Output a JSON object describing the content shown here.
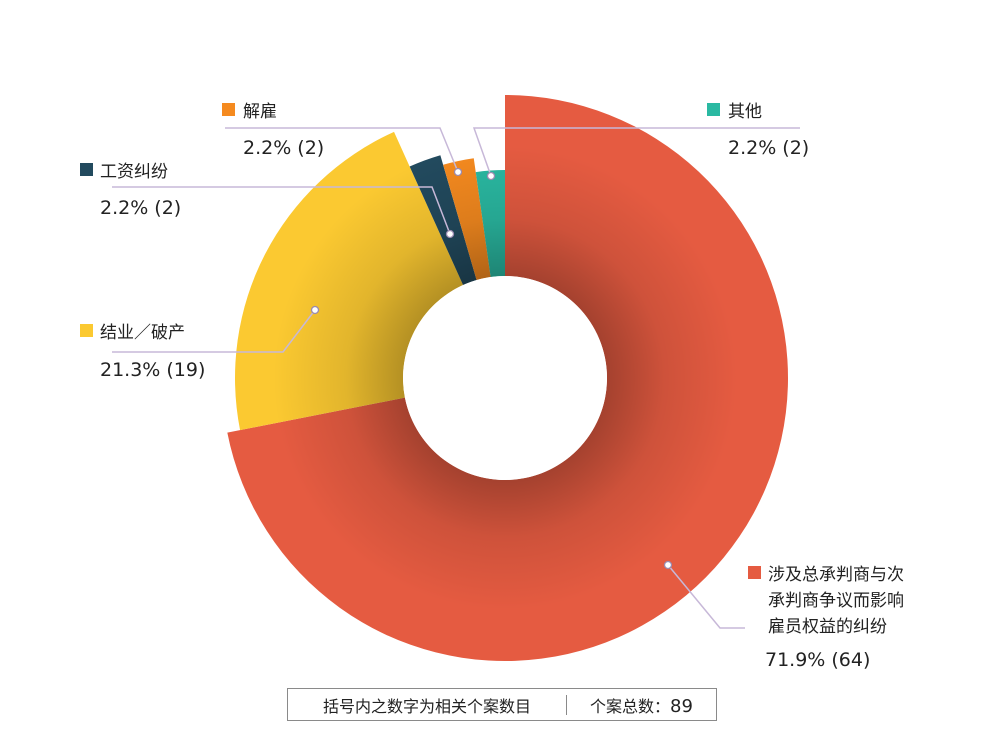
{
  "chart_data": {
    "type": "pie",
    "donut": true,
    "total": 89,
    "slices": [
      {
        "label": "涉及总承判商与次承判商争议而影响雇员权益的纠纷",
        "label_lines": [
          "涉及总承判商与次",
          "承判商争议而影响",
          "雇员权益的纠纷"
        ],
        "count": 64,
        "percent_text": "71.9% (64)",
        "color": "#e55b41"
      },
      {
        "label": "结业／破产",
        "count": 19,
        "percent_text": "21.3% (19)",
        "color": "#fbc931"
      },
      {
        "label": "工资纠纷",
        "count": 2,
        "percent_text": "2.2% (2)",
        "color": "#224a5e"
      },
      {
        "label": "解雇",
        "count": 2,
        "percent_text": "2.2% (2)",
        "color": "#f58a1f"
      },
      {
        "label": "其他",
        "count": 2,
        "percent_text": "2.2% (2)",
        "color": "#2ab9a2"
      }
    ]
  },
  "footer": {
    "note": "括号内之数字为相关个案数目",
    "total_label": "个案总数：",
    "total_value": "89"
  }
}
